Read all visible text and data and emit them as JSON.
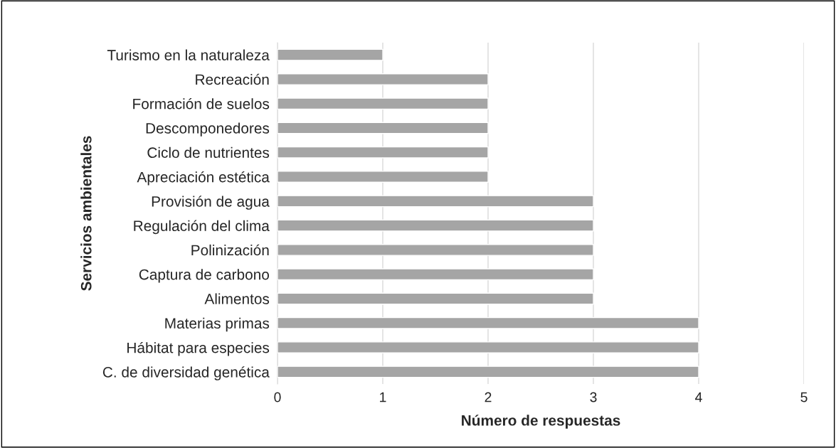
{
  "chart_data": {
    "type": "bar",
    "orientation": "horizontal",
    "categories": [
      "Turismo en la naturaleza",
      "Recreación",
      "Formación de suelos",
      "Descomponedores",
      "Ciclo de nutrientes",
      "Apreciación estética",
      "Provisión de agua",
      "Regulación del clima",
      "Polinización",
      "Captura de carbono",
      "Alimentos",
      "Materias primas",
      "Hábitat para especies",
      "C. de diversidad genética"
    ],
    "values": [
      1,
      2,
      2,
      2,
      2,
      2,
      3,
      3,
      3,
      3,
      3,
      4,
      4,
      4
    ],
    "color": "#a5a5a5",
    "xlim": [
      0,
      5
    ],
    "xticks": [
      0,
      1,
      2,
      3,
      4,
      5
    ],
    "xlabel": "Número de respuestas",
    "ylabel": "Servicios ambientales",
    "grid": "x"
  }
}
